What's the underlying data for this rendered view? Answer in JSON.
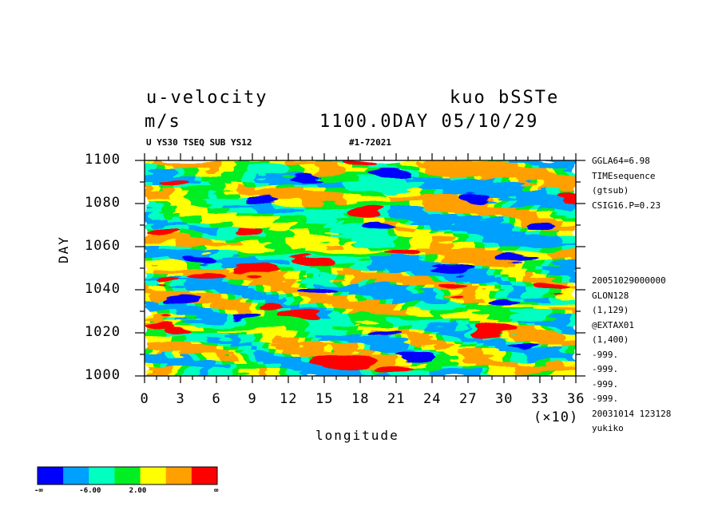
{
  "header": {
    "title_left": "u-velocity",
    "title_right": "kuo bSSTe",
    "units": "m/s",
    "time_label": "1100.0DAY 05/10/29",
    "subtitle_left": "U YS30 TSEQ SUB YS12",
    "subtitle_right": "#1-72021"
  },
  "side_info": {
    "top": [
      "GGLA64=6.98",
      "TIMEsequence",
      "(gtsub)",
      "CSIG16.P=0.23"
    ],
    "bottom": [
      "20051029000000",
      "GLON128",
      "(1,129)",
      "@EXTAX01",
      "(1,400)",
      "-999.",
      "-999.",
      "-999.",
      "-999.",
      "20031014 123128",
      "yukiko"
    ]
  },
  "colors": {
    "levels": [
      "#0000ff",
      "#00a0ff",
      "#00ffc0",
      "#00ee22",
      "#ffff00",
      "#ffa000",
      "#ff0000"
    ]
  },
  "colorbar": {
    "labels": [
      "-∞",
      "-6.00",
      "2.00",
      "∞"
    ]
  },
  "chart_data": {
    "type": "heatmap",
    "title": "u-velocity",
    "units": "m/s",
    "xlabel": "longitude",
    "ylabel": "DAY",
    "x_multiplier_label": "(×10)",
    "xlim": [
      0,
      36
    ],
    "ylim": [
      1000,
      1100
    ],
    "x_ticks": [
      "0",
      "3",
      "6",
      "9",
      "12",
      "15",
      "18",
      "21",
      "24",
      "27",
      "30",
      "33",
      "36"
    ],
    "y_ticks": [
      "1000",
      "1020",
      "1040",
      "1060",
      "1080",
      "1100"
    ],
    "color_levels": 7,
    "blobs": [
      {
        "x": 16.5,
        "y": 1007,
        "level": 6,
        "rx": 2.8,
        "ry": 3
      },
      {
        "x": 21,
        "y": 1004,
        "level": 6,
        "rx": 1.5,
        "ry": 2
      },
      {
        "x": 1.5,
        "y": 1024,
        "level": 6,
        "rx": 1.5,
        "ry": 2
      },
      {
        "x": 3,
        "y": 1021,
        "level": 6,
        "rx": 1.2,
        "ry": 2
      },
      {
        "x": 5,
        "y": 1046,
        "level": 6,
        "rx": 1.6,
        "ry": 2.5
      },
      {
        "x": 2,
        "y": 1044,
        "level": 6,
        "rx": 1,
        "ry": 2
      },
      {
        "x": 9,
        "y": 1049,
        "level": 6,
        "rx": 2,
        "ry": 3
      },
      {
        "x": 13,
        "y": 1027,
        "level": 6,
        "rx": 1.7,
        "ry": 2.2
      },
      {
        "x": 14,
        "y": 1053,
        "level": 6,
        "rx": 1.8,
        "ry": 2.2
      },
      {
        "x": 18.5,
        "y": 1076,
        "level": 6,
        "rx": 1.4,
        "ry": 2
      },
      {
        "x": 18,
        "y": 1099,
        "level": 6,
        "rx": 1.5,
        "ry": 1.8
      },
      {
        "x": 21.5,
        "y": 1058,
        "level": 6,
        "rx": 1.5,
        "ry": 2
      },
      {
        "x": 29.5,
        "y": 1021,
        "level": 6,
        "rx": 2,
        "ry": 2.5
      },
      {
        "x": 34,
        "y": 1041,
        "level": 6,
        "rx": 1.6,
        "ry": 2
      },
      {
        "x": 1.5,
        "y": 1066,
        "level": 6,
        "rx": 1.5,
        "ry": 2
      },
      {
        "x": 9,
        "y": 1067,
        "level": 6,
        "rx": 1.2,
        "ry": 2
      },
      {
        "x": 2.5,
        "y": 1090,
        "level": 6,
        "rx": 1.3,
        "ry": 1.8
      },
      {
        "x": 11,
        "y": 1032,
        "level": 6,
        "rx": 1,
        "ry": 1.5
      },
      {
        "x": 25.5,
        "y": 1040,
        "level": 6,
        "rx": 1.2,
        "ry": 1.5
      },
      {
        "x": 35.5,
        "y": 1084,
        "level": 6,
        "rx": 1,
        "ry": 1.8
      },
      {
        "x": 20.5,
        "y": 1093,
        "level": 0,
        "rx": 1.7,
        "ry": 2.5
      },
      {
        "x": 19.5,
        "y": 1068,
        "level": 0,
        "rx": 1.5,
        "ry": 2
      },
      {
        "x": 26,
        "y": 1050,
        "level": 0,
        "rx": 1.6,
        "ry": 2
      },
      {
        "x": 31,
        "y": 1055,
        "level": 0,
        "rx": 1.6,
        "ry": 2
      },
      {
        "x": 10,
        "y": 1082,
        "level": 0,
        "rx": 1.5,
        "ry": 2
      },
      {
        "x": 5,
        "y": 1055,
        "level": 0,
        "rx": 1.5,
        "ry": 2
      },
      {
        "x": 3,
        "y": 1035,
        "level": 0,
        "rx": 1.3,
        "ry": 1.8
      },
      {
        "x": 20,
        "y": 1020,
        "level": 0,
        "rx": 1.5,
        "ry": 2
      },
      {
        "x": 30,
        "y": 1035,
        "level": 0,
        "rx": 1.5,
        "ry": 2
      },
      {
        "x": 22.5,
        "y": 1010,
        "level": 0,
        "rx": 1.5,
        "ry": 2
      },
      {
        "x": 31.5,
        "y": 1015,
        "level": 0,
        "rx": 1.2,
        "ry": 2
      },
      {
        "x": 8.5,
        "y": 1028,
        "level": 0,
        "rx": 1.4,
        "ry": 2
      },
      {
        "x": 14.5,
        "y": 1040,
        "level": 0,
        "rx": 1.3,
        "ry": 1.8
      },
      {
        "x": 33,
        "y": 1069,
        "level": 0,
        "rx": 1.3,
        "ry": 1.8
      },
      {
        "x": 14,
        "y": 1092,
        "level": 0,
        "rx": 1.2,
        "ry": 1.6
      },
      {
        "x": 27.5,
        "y": 1083,
        "level": 0,
        "rx": 1.2,
        "ry": 1.6
      }
    ]
  }
}
